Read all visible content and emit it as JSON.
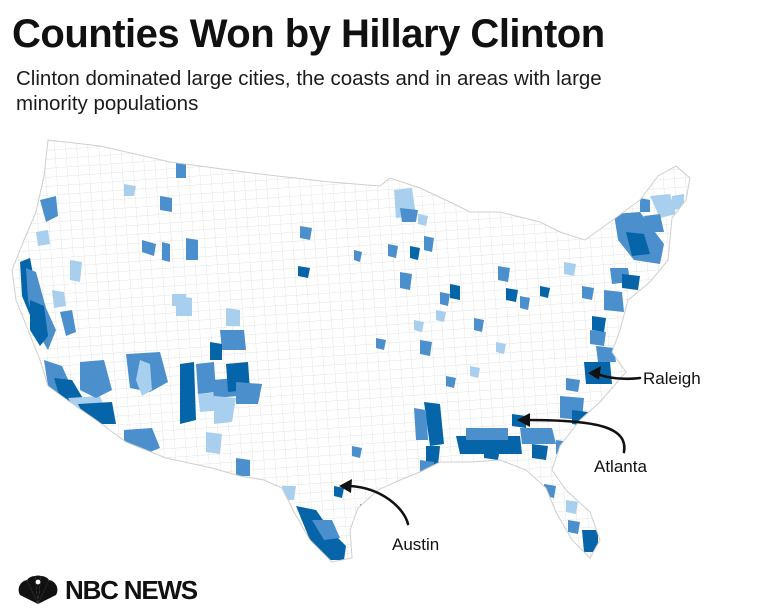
{
  "title": "Counties Won by Hillary Clinton",
  "subtitle": "Clinton dominated large cities, the coasts and in areas with large minority populations",
  "colors": {
    "dark": "#0565a8",
    "mid": "#4b8fcc",
    "light": "#a9cfee",
    "base": "#ffffff",
    "border": "#dadada",
    "text": "#111111"
  },
  "annotations": [
    {
      "label": "Raleigh"
    },
    {
      "label": "Atlanta"
    },
    {
      "label": "Austin"
    }
  ],
  "logo": {
    "brand": "NBC NEWS"
  }
}
